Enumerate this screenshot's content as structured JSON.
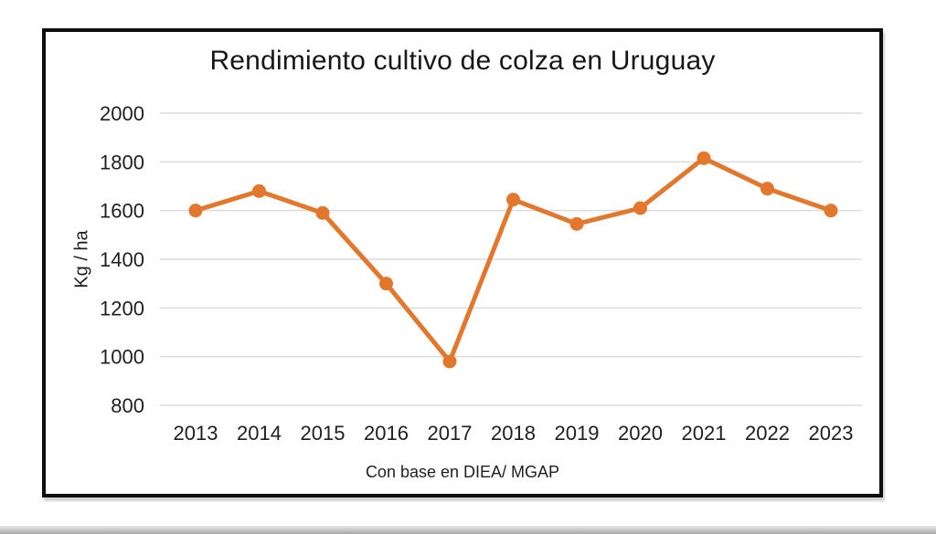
{
  "page": {
    "title": "Rendimiento cultivo de colza en Uruguay",
    "caption": "Con base en DIEA/ MGAP"
  },
  "chart_data": {
    "type": "line",
    "title": "Rendimiento cultivo de colza en Uruguay",
    "categories": [
      "2013",
      "2014",
      "2015",
      "2016",
      "2017",
      "2018",
      "2019",
      "2020",
      "2021",
      "2022",
      "2023"
    ],
    "values": [
      1600,
      1680,
      1590,
      1300,
      980,
      1645,
      1545,
      1610,
      1815,
      1690,
      1600
    ],
    "series_name": "Rendimiento",
    "xlabel": "",
    "ylabel": "Kg / ha",
    "caption": "Con base en DIEA/ MGAP",
    "ylim": [
      800,
      2000
    ],
    "yticks": [
      800,
      1000,
      1200,
      1400,
      1600,
      1800,
      2000
    ],
    "grid": true,
    "legend_position": "none",
    "marker": "circle",
    "colors": {
      "line": "#e2782e",
      "marker": "#e2782e",
      "grid": "#dcdcdc",
      "text": "#1f1f1f",
      "frame_border": "#0f0f0f",
      "background": "#ffffff"
    }
  }
}
